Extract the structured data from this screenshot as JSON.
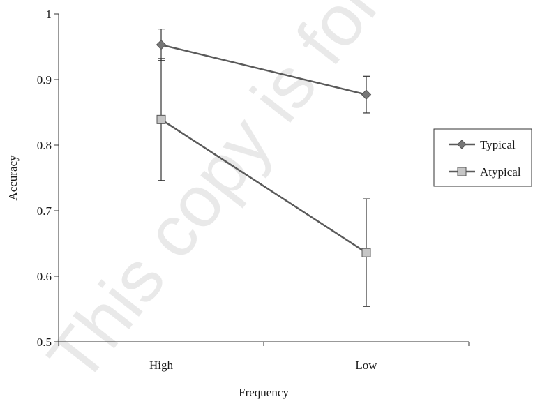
{
  "chart_data": {
    "type": "line",
    "categories": [
      "High",
      "Low"
    ],
    "series": [
      {
        "name": "Typical",
        "values": [
          0.953,
          0.877
        ],
        "error_high": [
          0.977,
          0.905
        ],
        "error_low": [
          0.929,
          0.849
        ],
        "marker": "diamond",
        "color": "#5a5a5a"
      },
      {
        "name": "Atypical",
        "values": [
          0.839,
          0.636
        ],
        "error_high": [
          0.932,
          0.718
        ],
        "error_low": [
          0.746,
          0.554
        ],
        "marker": "square",
        "color": "#5a5a5a"
      }
    ],
    "xlabel": "Frequency",
    "ylabel": "Accuracy",
    "ylim": [
      0.5,
      1
    ],
    "yticks": [
      "0.5",
      "0.6",
      "0.7",
      "0.8",
      "0.9",
      "1"
    ],
    "grid": false,
    "legend_position": "right"
  },
  "watermark": "This copy is for personal use"
}
